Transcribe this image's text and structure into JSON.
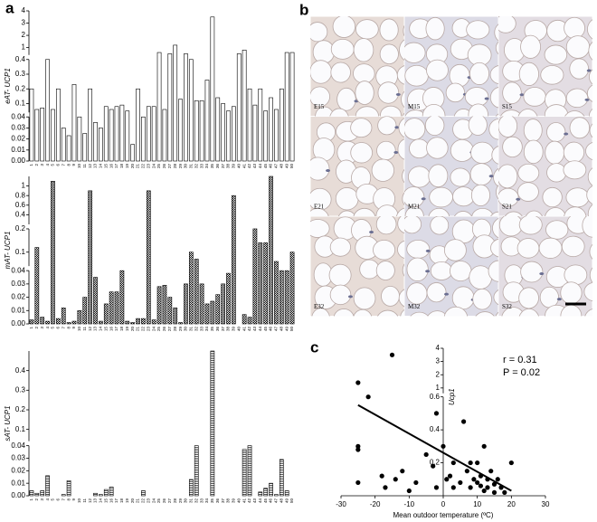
{
  "panel_labels": [
    "a",
    "b",
    "c"
  ],
  "micrograph_labels": [
    "E15",
    "M15",
    "S15",
    "E21",
    "M21",
    "S21",
    "E32",
    "M32",
    "S32"
  ],
  "chart_data": [
    {
      "type": "bar",
      "ylabel": "eAT- UCP1",
      "pattern": "open",
      "color": "#000000",
      "categories": [
        "1",
        "2",
        "3",
        "4",
        "5",
        "6",
        "7",
        "8",
        "9",
        "10",
        "11",
        "12",
        "13",
        "14",
        "15",
        "16",
        "17",
        "18",
        "19",
        "20",
        "21",
        "22",
        "23",
        "24",
        "25",
        "26",
        "27",
        "28",
        "29",
        "30",
        "31",
        "32",
        "33",
        "34",
        "35",
        "36",
        "37",
        "38",
        "39",
        "40",
        "41",
        "42",
        "43",
        "44",
        "45",
        "46",
        "47",
        "48",
        "49",
        "50"
      ],
      "values": [
        0.2,
        0.06,
        0.07,
        0.4,
        0.06,
        0.2,
        0.03,
        0.023,
        0.23,
        0.04,
        0.025,
        0.2,
        0.035,
        0.03,
        0.08,
        0.06,
        0.08,
        0.09,
        0.05,
        0.015,
        0.2,
        0.04,
        0.08,
        0.08,
        0.6,
        0.06,
        0.5,
        1.2,
        0.13,
        0.5,
        0.4,
        0.12,
        0.12,
        0.26,
        3.5,
        0.14,
        0.1,
        0.05,
        0.08,
        0.5,
        0.8,
        0.2,
        0.09,
        0.2,
        0.05,
        0.14,
        0.06,
        0.2,
        0.6,
        0.6
      ],
      "y_segments": [
        {
          "ylim": [
            0,
            0.04
          ],
          "yticks": [
            {
              "value": 0,
              "label": "0.00"
            },
            0.01,
            0.02,
            0.03,
            0.04
          ]
        },
        {
          "ylim": [
            0.04,
            0.4
          ],
          "yticks": [
            0.1,
            0.2,
            0.3,
            0.4
          ]
        },
        {
          "ylim": [
            0.4,
            4
          ],
          "yticks": [
            1,
            2,
            3,
            4
          ]
        }
      ]
    },
    {
      "type": "bar",
      "ylabel": "mAT- UCP1",
      "pattern": "checker",
      "color": "#000000",
      "categories": [
        "1",
        "2",
        "3",
        "4",
        "5",
        "6",
        "7",
        "8",
        "9",
        "10",
        "11",
        "12",
        "13",
        "14",
        "15",
        "16",
        "17",
        "18",
        "19",
        "20",
        "21",
        "22",
        "23",
        "24",
        "25",
        "26",
        "27",
        "28",
        "29",
        "30",
        "31",
        "32",
        "33",
        "34",
        "35",
        "36",
        "37",
        "38",
        "39",
        "40",
        "41",
        "42",
        "43",
        "44",
        "45",
        "46",
        "47",
        "48",
        "49",
        "50"
      ],
      "values": [
        0.003,
        0.12,
        0.005,
        0.002,
        1.1,
        0.004,
        0.012,
        0.001,
        0.002,
        0.01,
        0.02,
        0.9,
        0.035,
        0.002,
        0.015,
        0.024,
        0.024,
        0.04,
        0.002,
        0.001,
        0.004,
        0.004,
        0.9,
        0.003,
        0.028,
        0.029,
        0.02,
        0.012,
        0.001,
        0.03,
        0.1,
        0.07,
        0.03,
        0.015,
        0.017,
        0.022,
        0.03,
        0.038,
        0.8,
        0,
        0.007,
        0.005,
        0.2,
        0.14,
        0.14,
        1.2,
        0.06,
        0.04,
        0.04,
        0.1
      ],
      "y_segments": [
        {
          "ylim": [
            0,
            0.04
          ],
          "yticks": [
            {
              "value": 0,
              "label": "0.00"
            },
            0.01,
            0.02,
            0.03,
            0.04
          ]
        },
        {
          "ylim": [
            0.04,
            0.2
          ],
          "yticks": [
            0.1,
            0.2
          ]
        },
        {
          "ylim": [
            0.2,
            1.2
          ],
          "yticks": [
            0.4,
            0.6,
            0.8,
            1
          ]
        }
      ]
    },
    {
      "type": "bar",
      "ylabel": "sAT- UCP1",
      "pattern": "hatch",
      "color": "#000000",
      "categories": [
        "1",
        "2",
        "3",
        "4",
        "5",
        "6",
        "7",
        "8",
        "9",
        "10",
        "11",
        "12",
        "13",
        "14",
        "15",
        "16",
        "17",
        "18",
        "19",
        "20",
        "21",
        "22",
        "23",
        "24",
        "25",
        "26",
        "27",
        "28",
        "29",
        "30",
        "31",
        "32",
        "33",
        "34",
        "35",
        "36",
        "37",
        "38",
        "39",
        "40",
        "41",
        "42",
        "43",
        "44",
        "45",
        "46",
        "47",
        "48",
        "49",
        "50"
      ],
      "values": [
        0.004,
        0.002,
        0.004,
        0.016,
        0,
        0,
        0.001,
        0.012,
        0,
        0,
        0,
        0,
        0.002,
        0.001,
        0.005,
        0.007,
        0,
        0,
        0,
        0,
        0,
        0.004,
        0,
        0,
        0,
        0,
        0,
        0,
        0,
        0,
        0.013,
        0.04,
        0,
        0,
        0.5,
        0,
        0,
        0,
        0,
        0,
        0.037,
        0.04,
        0,
        0.003,
        0.006,
        0.01,
        0.001,
        0.029,
        0.004,
        0
      ],
      "y_segments": [
        {
          "ylim": [
            0,
            0.04
          ],
          "yticks": [
            {
              "value": 0,
              "label": "0.00"
            },
            0.01,
            0.02,
            0.03,
            0.04
          ]
        },
        {
          "ylim": [
            0.04,
            0.5
          ],
          "yticks": [
            0.1,
            0.2,
            0.3,
            0.4
          ]
        }
      ]
    },
    {
      "type": "scatter",
      "xlabel": "Mean outdoor temperature (ºC)",
      "ylabel": "Ucp1",
      "annotations": [
        "r = 0.31",
        "P = 0.02"
      ],
      "color": "#000000",
      "x": [
        -25,
        -25,
        -25,
        -22,
        -18,
        -17,
        -15,
        -12,
        -10,
        -8,
        -5,
        -3,
        -2,
        0,
        1,
        2,
        3,
        3,
        5,
        6,
        7,
        8,
        8,
        9,
        10,
        10,
        11,
        11,
        12,
        12,
        13,
        13,
        14,
        15,
        15,
        16,
        17,
        18,
        20,
        -25,
        -14,
        -2
      ],
      "y": [
        1.4,
        0.3,
        0.28,
        0.6,
        0.12,
        0.05,
        3.5,
        0.15,
        0.03,
        0.08,
        0.25,
        0.18,
        0.05,
        0.3,
        0.1,
        0.12,
        0.05,
        0.2,
        0.08,
        0.45,
        0.15,
        0.2,
        0.05,
        0.1,
        0.2,
        0.08,
        0.12,
        0.06,
        0.3,
        0.03,
        0.1,
        0.05,
        0.15,
        0.07,
        0.02,
        0.1,
        0.05,
        0.02,
        0.2,
        0.08,
        0.1,
        0.5
      ],
      "fit_line": {
        "x": [
          -25,
          20
        ],
        "y": [
          0.55,
          0.03
        ]
      },
      "xlim": [
        -30,
        30
      ],
      "xticks": [
        -30,
        -20,
        -10,
        0,
        10,
        20,
        30
      ],
      "y_segments": [
        {
          "ylim": [
            0,
            0.6
          ],
          "yticks": [
            0.2,
            0.4,
            0.6
          ]
        },
        {
          "ylim": [
            0.6,
            4
          ],
          "yticks": [
            1,
            2,
            3,
            4
          ]
        }
      ]
    }
  ]
}
